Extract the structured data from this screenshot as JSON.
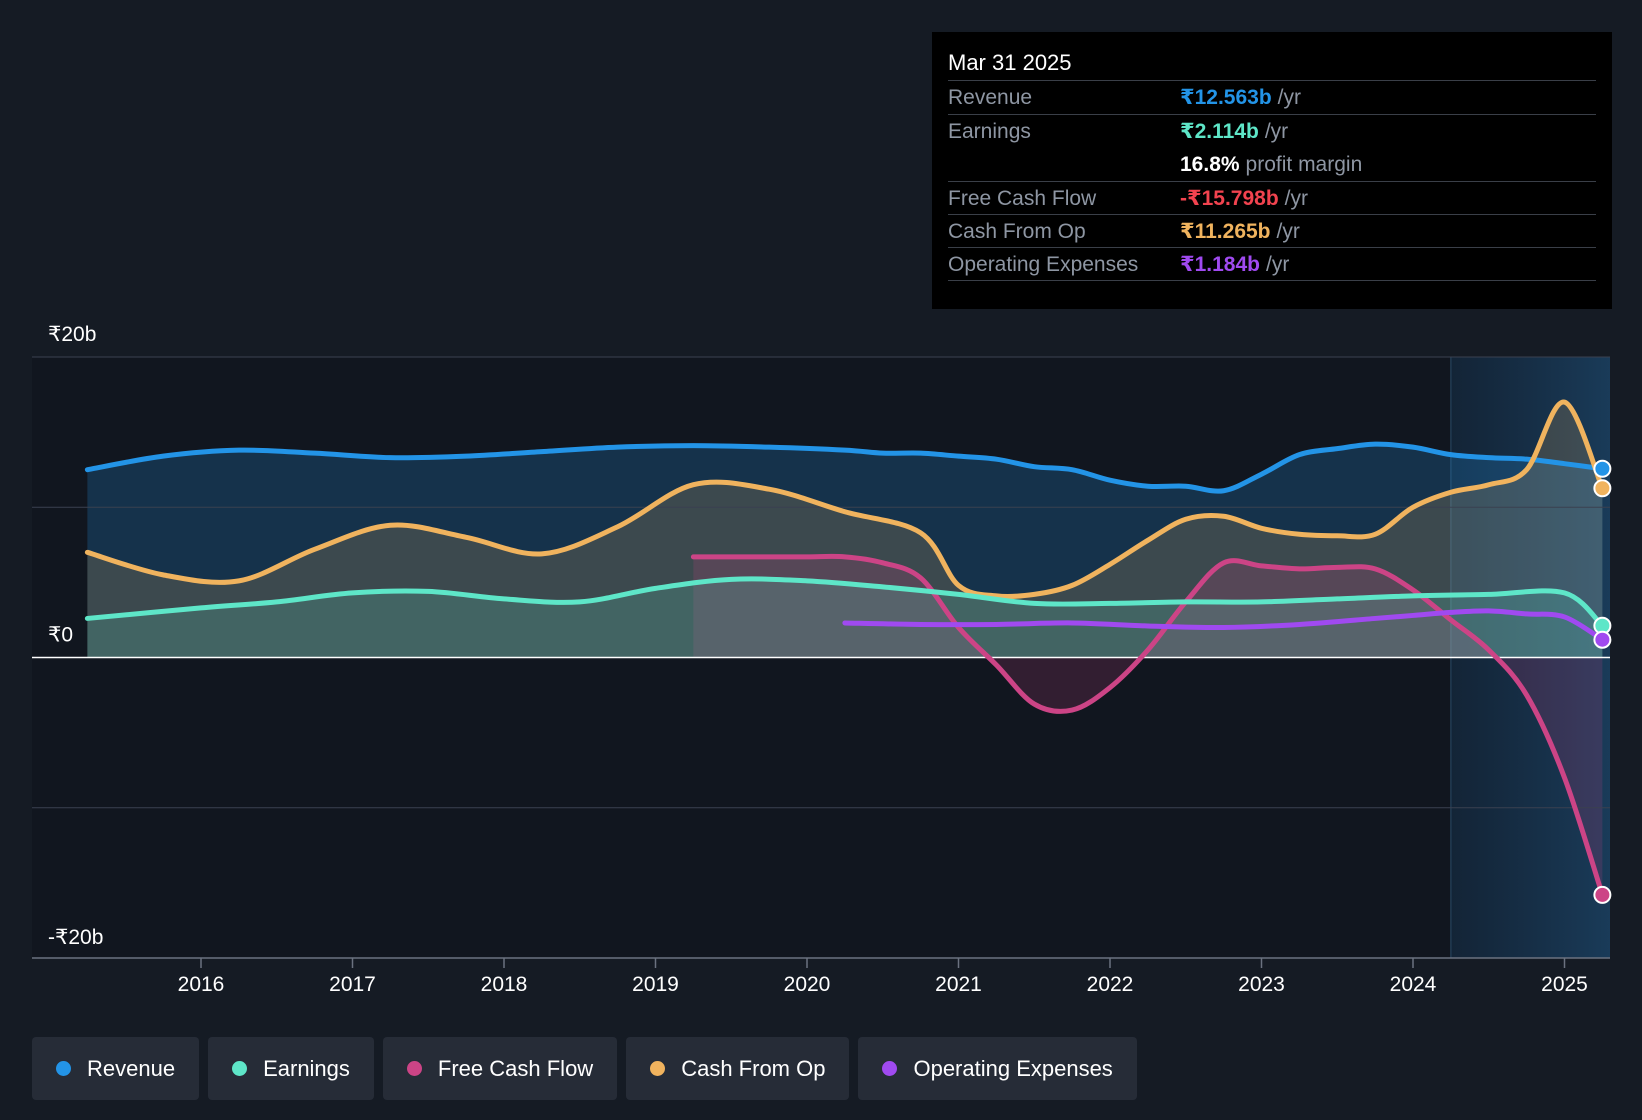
{
  "tooltip": {
    "date": "Mar 31 2025",
    "rows": [
      {
        "label": "Revenue",
        "value": "₹12.563b",
        "unit": "/yr",
        "color": "#2394e7"
      },
      {
        "label": "Earnings",
        "value": "₹2.114b",
        "unit": "/yr",
        "color": "#5ee6c8"
      },
      {
        "label": "",
        "value": "16.8%",
        "unit": "profit margin",
        "color": "#ffffff"
      },
      {
        "label": "Free Cash Flow",
        "value": "-₹15.798b",
        "unit": "/yr",
        "color": "#f2434f"
      },
      {
        "label": "Cash From Op",
        "value": "₹11.265b",
        "unit": "/yr",
        "color": "#f0b35e"
      },
      {
        "label": "Operating Expenses",
        "value": "₹1.184b",
        "unit": "/yr",
        "color": "#a04af0"
      }
    ]
  },
  "legend": [
    {
      "label": "Revenue",
      "color": "#2394e7"
    },
    {
      "label": "Earnings",
      "color": "#5ee6c8"
    },
    {
      "label": "Free Cash Flow",
      "color": "#cc4486"
    },
    {
      "label": "Cash From Op",
      "color": "#f0b35e"
    },
    {
      "label": "Operating Expenses",
      "color": "#a04af0"
    }
  ],
  "chart_data": {
    "type": "line",
    "title": "",
    "xlabel": "",
    "ylabel": "",
    "xlim": [
      2015.0,
      2025.4
    ],
    "ylim": [
      -20,
      20
    ],
    "y_tick_labels": [
      {
        "value": 20,
        "label": "₹20b"
      },
      {
        "value": 0,
        "label": "₹0"
      },
      {
        "value": -20,
        "label": "-₹20b"
      }
    ],
    "x_ticks": [
      2016,
      2017,
      2018,
      2019,
      2020,
      2021,
      2022,
      2023,
      2024,
      2025
    ],
    "x_tick_labels": [
      "2016",
      "2017",
      "2018",
      "2019",
      "2020",
      "2021",
      "2022",
      "2023",
      "2024",
      "2025"
    ],
    "grid": true,
    "forecast_region_start": 2024.25,
    "series": [
      {
        "name": "Revenue",
        "color": "#2394e7",
        "fill": true,
        "x": [
          2015.25,
          2015.75,
          2016.25,
          2016.75,
          2017.25,
          2017.75,
          2018.25,
          2018.75,
          2019.25,
          2019.75,
          2020.25,
          2020.5,
          2020.75,
          2021.0,
          2021.25,
          2021.5,
          2021.75,
          2022.0,
          2022.25,
          2022.5,
          2022.75,
          2023.0,
          2023.25,
          2023.5,
          2023.75,
          2024.0,
          2024.25,
          2024.5,
          2024.75,
          2025.0,
          2025.25
        ],
        "values": [
          12.5,
          13.4,
          13.8,
          13.6,
          13.3,
          13.4,
          13.7,
          14.0,
          14.1,
          14.0,
          13.8,
          13.6,
          13.6,
          13.4,
          13.2,
          12.7,
          12.5,
          11.8,
          11.4,
          11.4,
          11.1,
          12.2,
          13.5,
          13.9,
          14.2,
          14.0,
          13.5,
          13.3,
          13.2,
          12.9,
          12.563
        ]
      },
      {
        "name": "Earnings",
        "color": "#5ee6c8",
        "fill": true,
        "x": [
          2015.25,
          2016.0,
          2016.5,
          2017.0,
          2017.5,
          2018.0,
          2018.5,
          2019.0,
          2019.5,
          2020.0,
          2020.5,
          2021.0,
          2021.5,
          2022.0,
          2022.5,
          2023.0,
          2023.5,
          2024.0,
          2024.5,
          2025.0,
          2025.25
        ],
        "values": [
          2.6,
          3.3,
          3.7,
          4.3,
          4.4,
          3.9,
          3.7,
          4.6,
          5.2,
          5.1,
          4.7,
          4.2,
          3.6,
          3.6,
          3.7,
          3.7,
          3.9,
          4.1,
          4.2,
          4.3,
          2.114
        ]
      },
      {
        "name": "Free Cash Flow",
        "color": "#cc4486",
        "fill": true,
        "x": [
          2019.25,
          2019.75,
          2020.0,
          2020.25,
          2020.5,
          2020.75,
          2021.0,
          2021.25,
          2021.5,
          2021.75,
          2022.0,
          2022.25,
          2022.5,
          2022.75,
          2023.0,
          2023.25,
          2023.5,
          2023.75,
          2024.0,
          2024.25,
          2024.5,
          2024.75,
          2025.0,
          2025.25
        ],
        "values": [
          6.7,
          6.7,
          6.7,
          6.7,
          6.3,
          5.3,
          2.0,
          -0.5,
          -3.1,
          -3.5,
          -2.0,
          0.5,
          3.7,
          6.3,
          6.1,
          5.9,
          6.0,
          5.9,
          4.5,
          2.5,
          0.5,
          -2.5,
          -8.0,
          -15.798
        ]
      },
      {
        "name": "Cash From Op",
        "color": "#f0b35e",
        "fill": true,
        "x": [
          2015.25,
          2015.75,
          2016.25,
          2016.75,
          2017.25,
          2017.75,
          2018.25,
          2018.75,
          2019.25,
          2019.75,
          2020.25,
          2020.75,
          2021.0,
          2021.25,
          2021.5,
          2021.75,
          2022.0,
          2022.25,
          2022.5,
          2022.75,
          2023.0,
          2023.25,
          2023.5,
          2023.75,
          2024.0,
          2024.25,
          2024.5,
          2024.75,
          2025.0,
          2025.25
        ],
        "values": [
          7.0,
          5.5,
          5.1,
          7.2,
          8.8,
          8.0,
          6.9,
          8.7,
          11.5,
          11.2,
          9.7,
          8.3,
          4.8,
          4.1,
          4.2,
          4.8,
          6.2,
          7.8,
          9.2,
          9.4,
          8.6,
          8.2,
          8.1,
          8.2,
          10.0,
          11.0,
          11.5,
          12.5,
          17.0,
          11.265
        ]
      },
      {
        "name": "Operating Expenses",
        "color": "#a04af0",
        "fill": false,
        "x": [
          2020.25,
          2020.75,
          2021.25,
          2021.75,
          2022.25,
          2022.75,
          2023.25,
          2023.75,
          2024.0,
          2024.25,
          2024.5,
          2024.75,
          2025.0,
          2025.25
        ],
        "values": [
          2.3,
          2.2,
          2.2,
          2.3,
          2.1,
          2.0,
          2.2,
          2.6,
          2.8,
          3.0,
          3.1,
          2.9,
          2.7,
          1.184
        ]
      }
    ]
  }
}
